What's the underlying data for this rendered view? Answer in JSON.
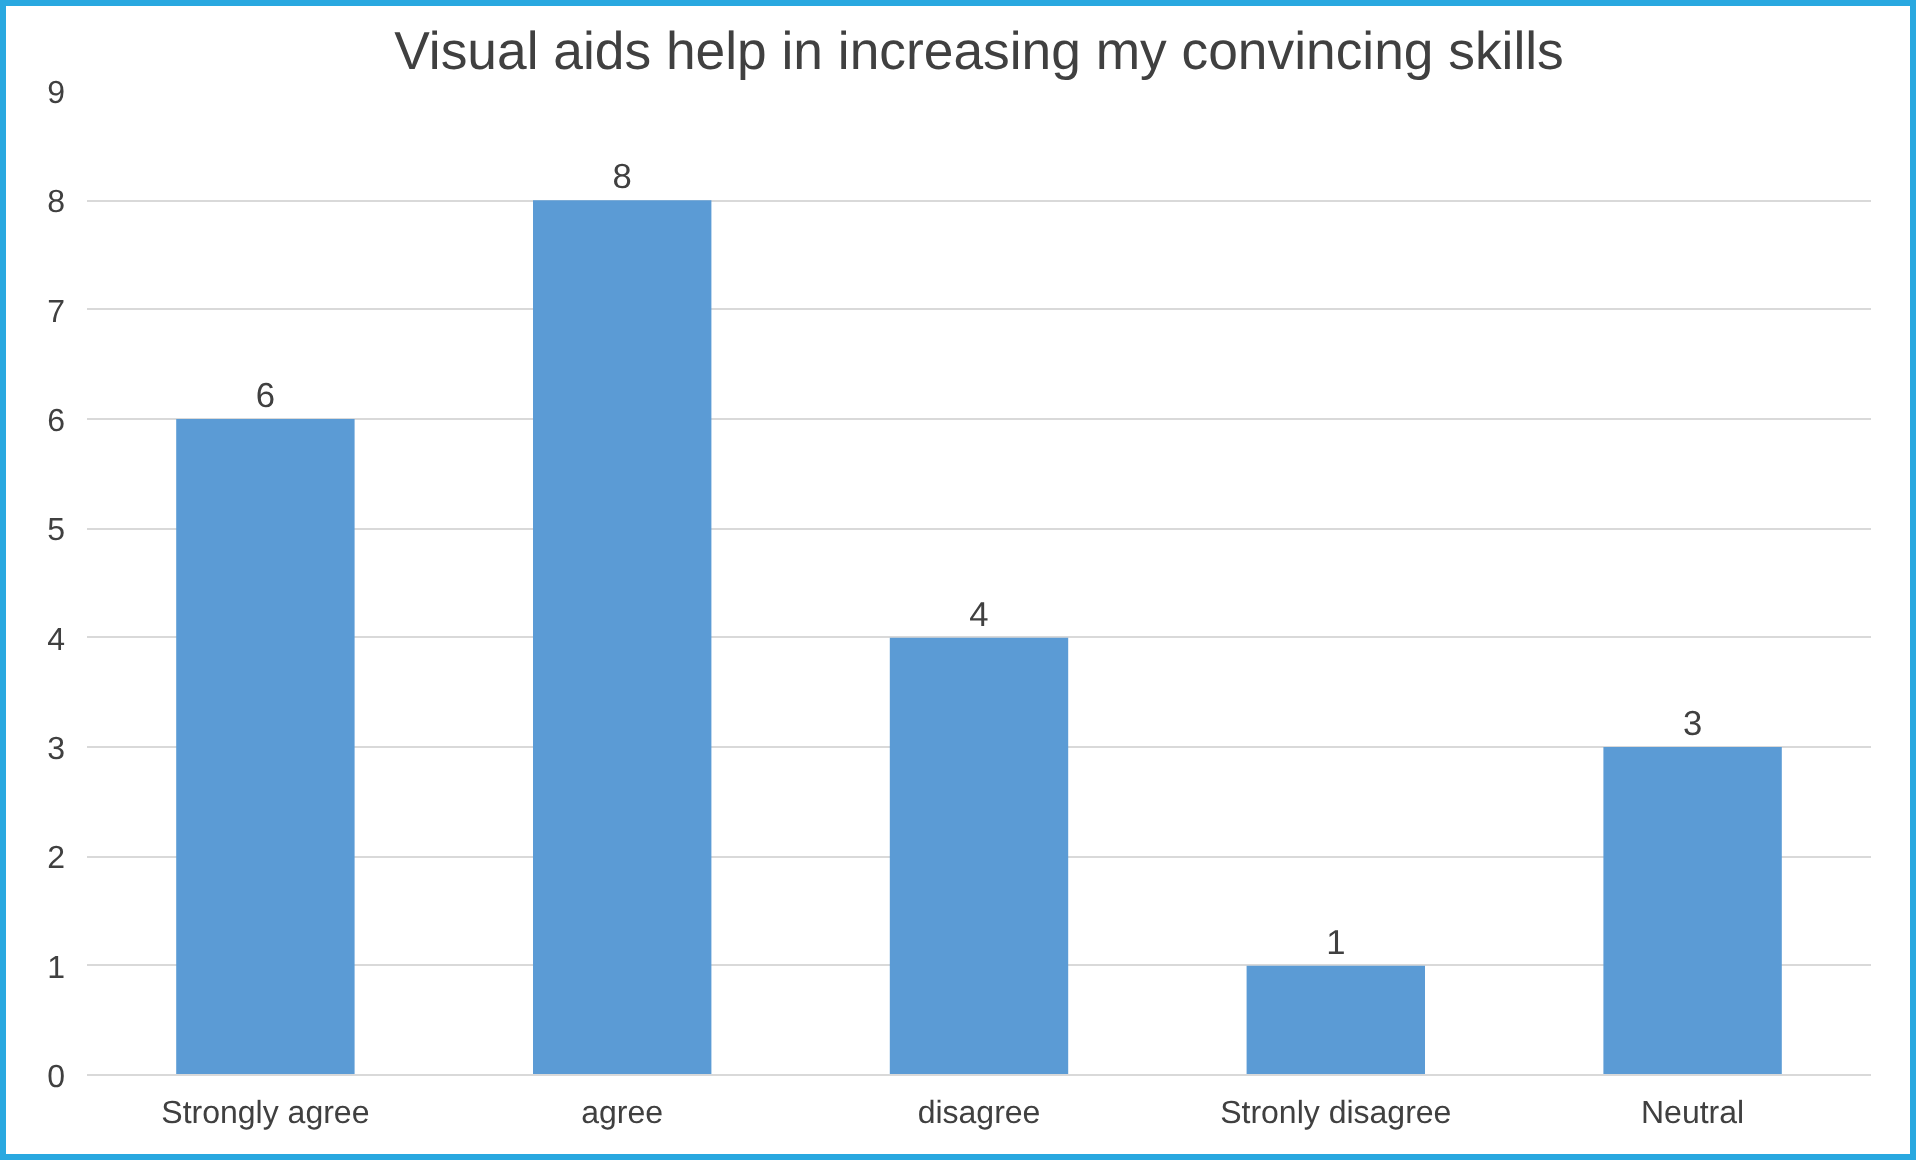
{
  "chart_data": {
    "type": "bar",
    "title": "Visual aids help in increasing my convincing skills",
    "categories": [
      "Strongly agree",
      "agree",
      "disagree",
      "Stronly disagree",
      "Neutral"
    ],
    "values": [
      6,
      8,
      4,
      1,
      3
    ],
    "color": "#5b9bd5",
    "ylim": [
      0,
      9
    ],
    "yticks": [
      0,
      1,
      2,
      3,
      4,
      5,
      6,
      7,
      8,
      9
    ],
    "grid": "y",
    "data_labels": true
  }
}
